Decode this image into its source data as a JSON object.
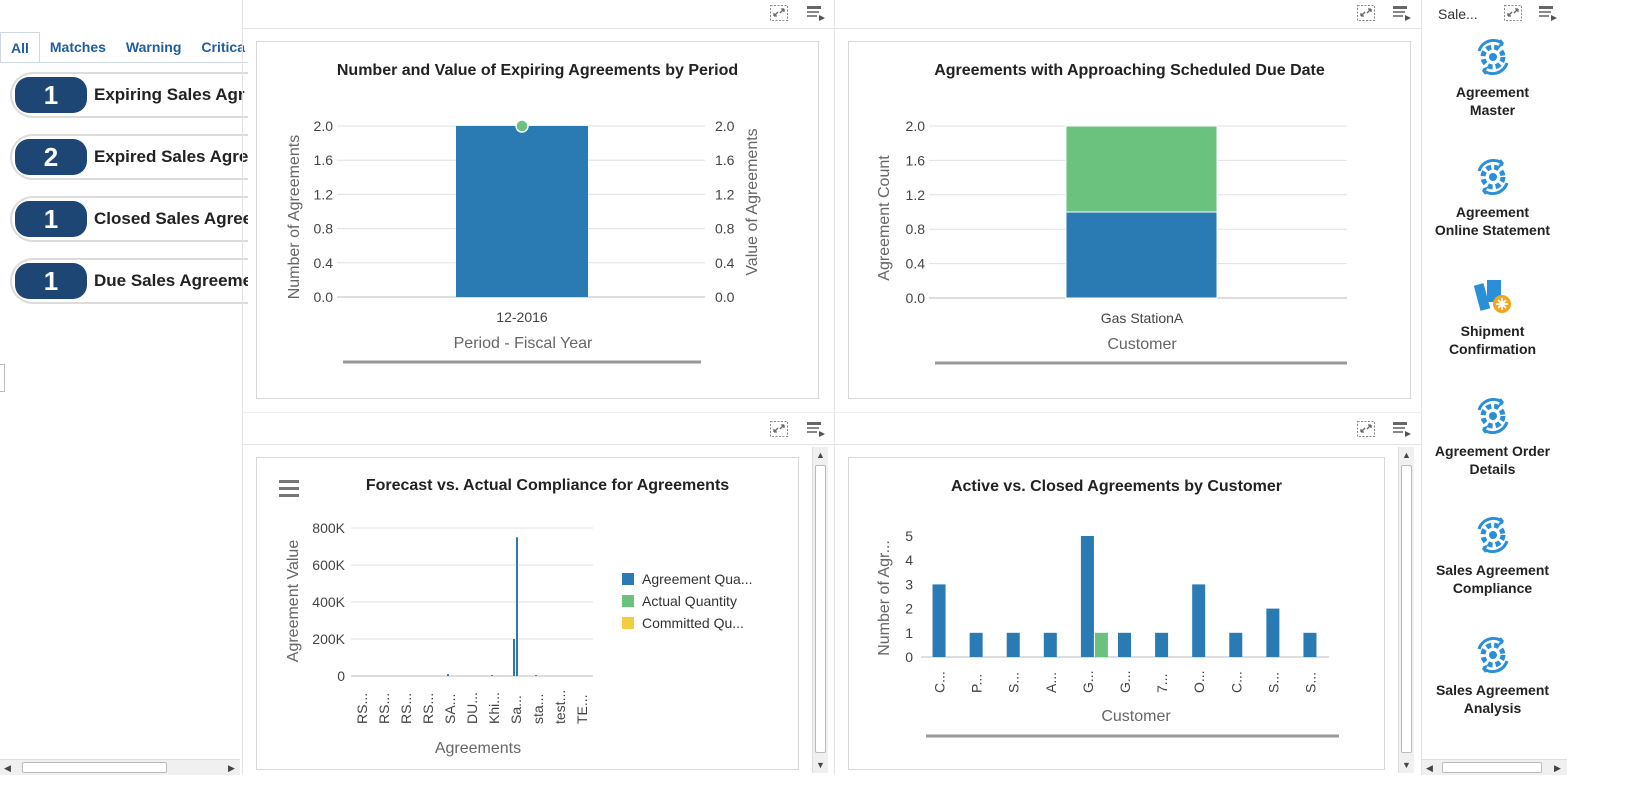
{
  "left_panel": {
    "tabs": [
      {
        "label": "All",
        "active": true
      },
      {
        "label": "Matches",
        "active": false
      },
      {
        "label": "Warning",
        "active": false
      },
      {
        "label": "Critica",
        "active": false
      }
    ],
    "kpis": [
      {
        "count": "1",
        "label": "Expiring Sales Agr"
      },
      {
        "count": "2",
        "label": "Expired Sales Agre"
      },
      {
        "count": "1",
        "label": "Closed Sales Agree"
      },
      {
        "count": "1",
        "label": "Due Sales Agreeme"
      }
    ]
  },
  "chart1": {
    "title": "Number and Value of Expiring Agreements by Period",
    "ylabel": "Number of Agreements",
    "y2label": "Value of Agreements",
    "xlabel": "Period - Fiscal Year",
    "y_ticks": [
      "2.0",
      "1.6",
      "1.2",
      "0.8",
      "0.4",
      "0.0"
    ],
    "y2_ticks": [
      "2.0",
      "1.6",
      "1.2",
      "0.8",
      "0.4",
      "0.0"
    ],
    "category": "12-2016"
  },
  "chart2": {
    "title": "Agreements with Approaching Scheduled Due Date",
    "ylabel": "Agreement Count",
    "xlabel": "Customer",
    "y_ticks": [
      "2.0",
      "1.6",
      "1.2",
      "0.8",
      "0.4",
      "0.0"
    ],
    "category": "Gas StationA"
  },
  "chart3": {
    "title": "Forecast vs. Actual Compliance for Agreements",
    "ylabel": "Agreement Value",
    "xlabel": "Agreements",
    "y_ticks": [
      "800K",
      "600K",
      "400K",
      "200K",
      "0"
    ],
    "categories": [
      "RS...",
      "RS...",
      "RS...",
      "RS...",
      "SA...",
      "DU...",
      "Khi...",
      "Sa...",
      "sta...",
      "test...",
      "TE..."
    ],
    "legend": [
      "Agreement Qua...",
      "Actual Quantity",
      "Committed Qu..."
    ]
  },
  "chart4": {
    "title": "Active vs. Closed Agreements by Customer",
    "ylabel": "Number of Agr...",
    "xlabel": "Customer",
    "y_ticks": [
      "5",
      "4",
      "3",
      "2",
      "1",
      "0"
    ],
    "categories": [
      "C...",
      "P...",
      "S...",
      "A...",
      "G...",
      "G...",
      "7...",
      "O...",
      "C...",
      "S...",
      "S..."
    ]
  },
  "chart_data": [
    {
      "type": "bar",
      "title": "Number and Value of Expiring Agreements by Period",
      "categories": [
        "12-2016"
      ],
      "series": [
        {
          "name": "Number of Agreements",
          "values": [
            2
          ]
        },
        {
          "name": "Value of Agreements",
          "values": [
            2
          ]
        }
      ],
      "xlabel": "Period - Fiscal Year",
      "ylabel": "Number of Agreements",
      "y2label": "Value of Agreements",
      "ylim": [
        0,
        2
      ],
      "y2lim": [
        0,
        2
      ],
      "colors": [
        "#2a7bb4",
        "#6bc17e"
      ]
    },
    {
      "type": "bar",
      "title": "Agreements with Approaching Scheduled Due Date",
      "categories": [
        "Gas StationA"
      ],
      "stacked": true,
      "series": [
        {
          "values": [
            1
          ]
        },
        {
          "values": [
            1
          ]
        }
      ],
      "xlabel": "Customer",
      "ylabel": "Agreement Count",
      "ylim": [
        0,
        2
      ],
      "colors": [
        "#2a7bb4",
        "#6bc17e"
      ]
    },
    {
      "type": "bar",
      "title": "Forecast vs. Actual Compliance for Agreements",
      "categories": [
        "RS...",
        "RS...",
        "RS...",
        "RS...",
        "SA...",
        "DU...",
        "Khi...",
        "Sa...",
        "sta...",
        "test...",
        "TE..."
      ],
      "series": [
        {
          "name": "Agreement Qua...",
          "values": [
            0,
            0,
            0,
            0,
            10000,
            0,
            5000,
            200000,
            5000,
            0,
            0
          ]
        },
        {
          "name": "Actual Quantity",
          "values": [
            0,
            0,
            0,
            0,
            0,
            0,
            0,
            0,
            0,
            0,
            0
          ]
        },
        {
          "name": "Committed Qu...",
          "values": [
            0,
            0,
            0,
            0,
            0,
            0,
            0,
            750000,
            0,
            0,
            0
          ]
        }
      ],
      "xlabel": "Agreements",
      "ylabel": "Agreement Value",
      "ylim": [
        0,
        800000
      ],
      "legend": "right",
      "colors": [
        "#2a7bb4",
        "#6bc17e",
        "#f2cd44"
      ]
    },
    {
      "type": "bar",
      "title": "Active vs. Closed Agreements by Customer",
      "categories": [
        "C...",
        "P...",
        "S...",
        "A...",
        "G...",
        "G...",
        "7...",
        "O...",
        "C...",
        "S...",
        "S..."
      ],
      "series": [
        {
          "values": [
            3,
            1,
            1,
            1,
            5,
            1,
            1,
            3,
            1,
            2,
            1
          ]
        },
        {
          "values": [
            0,
            0,
            0,
            0,
            1,
            0,
            0,
            0,
            0,
            0,
            0
          ]
        }
      ],
      "xlabel": "Customer",
      "ylabel": "Number of Agr...",
      "ylim": [
        0,
        5
      ],
      "colors": [
        "#2a7bb4",
        "#6bc17e"
      ]
    }
  ],
  "launcher": {
    "header": "Sale...",
    "items": [
      {
        "label_1": "Agreement",
        "label_2": "Master",
        "icon": "gear-sync-icon"
      },
      {
        "label_1": "Agreement",
        "label_2": "Online Statement",
        "icon": "gear-sync-icon"
      },
      {
        "label_1": "Shipment",
        "label_2": "Confirmation",
        "icon": "shipment-icon"
      },
      {
        "label_1": "Agreement Order",
        "label_2": "Details",
        "icon": "gear-sync-icon"
      },
      {
        "label_1": "Sales Agreement",
        "label_2": "Compliance",
        "icon": "gear-sync-icon"
      },
      {
        "label_1": "Sales Agreement",
        "label_2": "Analysis",
        "icon": "gear-sync-icon"
      }
    ]
  },
  "colors": {
    "accent": "#1d4675",
    "series_blue": "#2a7bb4",
    "series_green": "#6bc17e",
    "series_yellow": "#f2cd44",
    "link": "#1f5fa0"
  }
}
